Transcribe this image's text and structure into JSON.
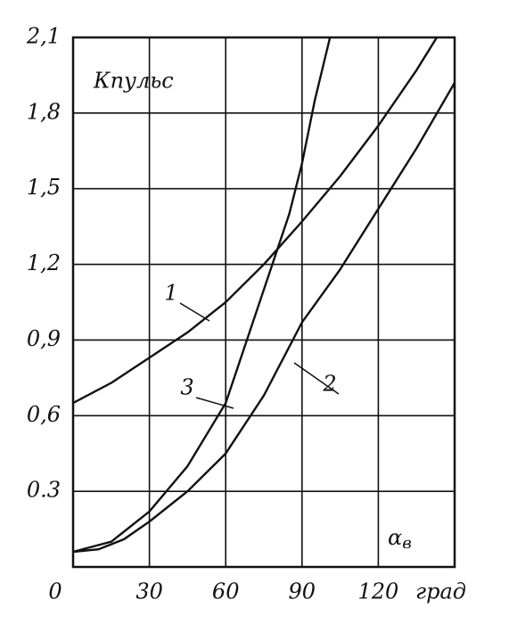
{
  "chart_data": {
    "type": "line",
    "y_label": "Кпульс",
    "x_label": "α",
    "x_label_sub": "в",
    "x_unit": "град",
    "xlim": [
      0,
      150
    ],
    "xticks": [
      0,
      30,
      60,
      90,
      120
    ],
    "ylim": [
      0,
      2.1
    ],
    "yticks": [
      0.3,
      {
        "value": 0.6,
        "label": "0,6"
      },
      {
        "value": 0.9,
        "label": "0,9"
      },
      {
        "value": 1.2,
        "label": "1,2"
      },
      {
        "value": 1.5,
        "label": "1,5"
      },
      {
        "value": 1.8,
        "label": "1,8"
      },
      {
        "value": 2.1,
        "label": "2,1"
      }
    ],
    "grid": true,
    "series": [
      {
        "name": "1",
        "color": "#111111",
        "x": [
          0,
          15,
          30,
          45,
          60,
          75,
          90,
          105,
          120,
          135,
          143
        ],
        "values": [
          0.65,
          0.73,
          0.83,
          0.93,
          1.05,
          1.2,
          1.37,
          1.55,
          1.75,
          1.97,
          2.1
        ]
      },
      {
        "name": "2",
        "color": "#111111",
        "x": [
          0,
          10,
          20,
          30,
          45,
          60,
          75,
          90,
          105,
          120,
          135,
          150
        ],
        "values": [
          0.06,
          0.07,
          0.11,
          0.18,
          0.3,
          0.45,
          0.68,
          0.97,
          1.18,
          1.42,
          1.66,
          1.92
        ]
      },
      {
        "name": "3",
        "color": "#111111",
        "x": [
          0,
          15,
          30,
          45,
          60,
          75,
          85,
          90,
          95,
          101
        ],
        "values": [
          0.06,
          0.1,
          0.22,
          0.4,
          0.65,
          1.1,
          1.4,
          1.6,
          1.85,
          2.1
        ]
      }
    ]
  }
}
